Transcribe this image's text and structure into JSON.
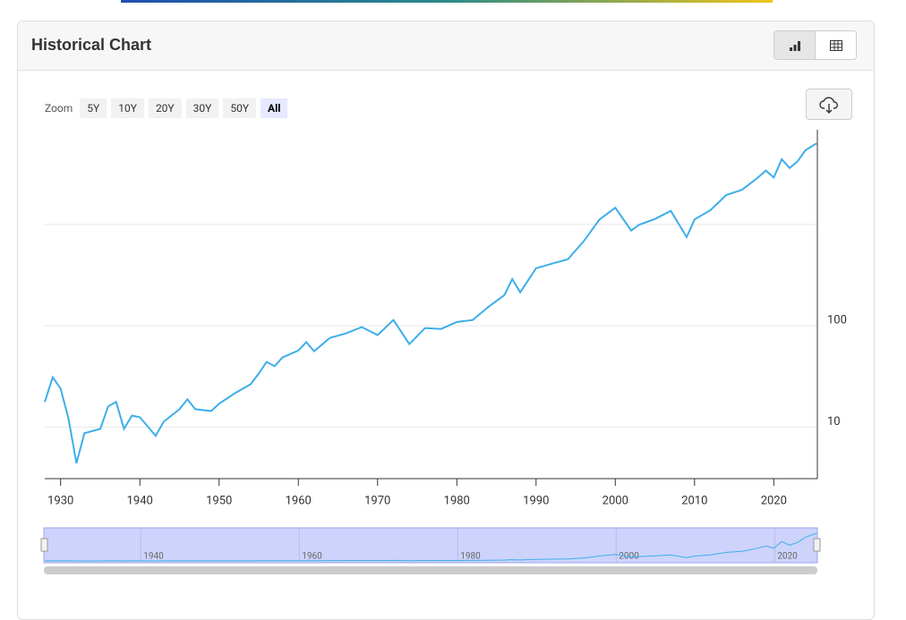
{
  "header": {
    "title": "Historical Chart"
  },
  "zoom": {
    "label": "Zoom",
    "buttons": [
      "5Y",
      "10Y",
      "20Y",
      "30Y",
      "50Y",
      "All"
    ]
  },
  "chart_data": {
    "type": "line",
    "log_scale": true,
    "grid": true,
    "x": [
      1928,
      1929,
      1930,
      1931,
      1932,
      1933,
      1935,
      1936,
      1937,
      1938,
      1939,
      1940,
      1942,
      1943,
      1945,
      1946,
      1947,
      1949,
      1950,
      1952,
      1954,
      1955,
      1956,
      1957,
      1958,
      1960,
      1961,
      1962,
      1964,
      1966,
      1968,
      1970,
      1972,
      1974,
      1976,
      1978,
      1980,
      1982,
      1984,
      1986,
      1987,
      1988,
      1990,
      1992,
      1994,
      1996,
      1998,
      2000,
      2002,
      2003,
      2005,
      2007,
      2009,
      2010,
      2012,
      2014,
      2016,
      2018,
      2019,
      2020,
      2021,
      2022,
      2023,
      2024,
      2025.4
    ],
    "series": [
      {
        "color": "#3daee9",
        "values": [
          17.7,
          31,
          24,
          12,
          4.4,
          8.7,
          9.6,
          16,
          17.7,
          9.6,
          13,
          12.5,
          8.2,
          11.3,
          15,
          18.8,
          15,
          14.4,
          17,
          21.6,
          26.5,
          33.8,
          44,
          40,
          48.6,
          57,
          69,
          56,
          76,
          84,
          97,
          81,
          114,
          66,
          95,
          93,
          109,
          114,
          154,
          201,
          289,
          214,
          370,
          410,
          452,
          680,
          1120,
          1460,
          870,
          990,
          1130,
          1360,
          750,
          1120,
          1380,
          1950,
          2200,
          2900,
          3400,
          2900,
          4400,
          3600,
          4200,
          5400,
          6300
        ]
      }
    ],
    "xlim": [
      1928,
      2025.5
    ],
    "xticks": [
      1930,
      1940,
      1950,
      1960,
      1970,
      1980,
      1990,
      2000,
      2010,
      2020
    ],
    "ylim": [
      3.1,
      8600
    ],
    "yticks": [
      10,
      100,
      {
        "value": 1000,
        "label": null
      }
    ],
    "navigator_xticks": [
      1940,
      1960,
      1980,
      2000,
      2020
    ]
  }
}
